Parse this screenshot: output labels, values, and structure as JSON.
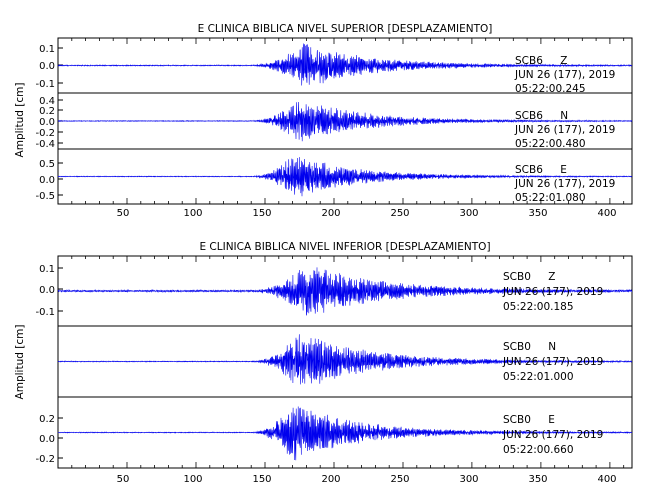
{
  "chart_data": [
    {
      "type": "line",
      "title": "E CLINICA BIBLICA NIVEL SUPERIOR [DESPLAZAMIENTO]",
      "ylabel": "Amplitud [cm]",
      "xlabel": "",
      "xlim": [
        0,
        416
      ],
      "x_ticks": [
        50,
        100,
        150,
        200,
        250,
        300,
        350,
        400
      ],
      "series_color": "#0000ee",
      "traces": [
        {
          "station": "SCB6",
          "component": "Z",
          "date": "JUN 26 (177), 2019",
          "time": "05:22:00.245",
          "ylim": [
            -0.15,
            0.15
          ],
          "y_ticks": [
            "0.1",
            "0.0",
            "-0.1"
          ],
          "y_tick_values": [
            0.1,
            0.0,
            -0.1
          ],
          "peak_amplitude": 0.13,
          "onset": 140,
          "peak_time": 178,
          "decay_end": 330,
          "noise_level": 0.003
        },
        {
          "station": "SCB6",
          "component": "N",
          "date": "JUN 26 (177), 2019",
          "time": "05:22:00.480",
          "ylim": [
            -0.5,
            0.5
          ],
          "y_ticks": [
            "0.4",
            "0.2",
            "0.0",
            "-0.2",
            "-0.4"
          ],
          "y_tick_values": [
            0.4,
            0.2,
            0.0,
            -0.2,
            -0.4
          ],
          "peak_amplitude": 0.42,
          "onset": 140,
          "peak_time": 175,
          "decay_end": 320,
          "noise_level": 0.008
        },
        {
          "station": "SCB6",
          "component": "E",
          "date": "JUN 26 (177), 2019",
          "time": "05:22:01.080",
          "ylim": [
            -0.65,
            0.65
          ],
          "y_ticks": [
            "0.5",
            "0.0",
            "-0.5"
          ],
          "y_tick_values": [
            0.5,
            0.0,
            -0.5
          ],
          "peak_amplitude": 0.55,
          "onset": 140,
          "peak_time": 171,
          "decay_end": 310,
          "noise_level": 0.01
        }
      ]
    },
    {
      "type": "line",
      "title": "E CLINICA BIBLICA NIVEL INFERIOR [DESPLAZAMIENTO]",
      "ylabel": "Amplitud [cm]",
      "xlabel": "",
      "xlim": [
        0,
        416
      ],
      "x_ticks": [
        50,
        100,
        150,
        200,
        250,
        300,
        350,
        400
      ],
      "series_color": "#0000ee",
      "traces": [
        {
          "station": "SCB0",
          "component": "Z",
          "date": "JUN 26 (177), 2019",
          "time": "05:22:00.185",
          "ylim": [
            -0.15,
            0.15
          ],
          "y_ticks": [
            "0.1",
            "0.0",
            "-0.1"
          ],
          "y_tick_values": [
            0.1,
            0.0,
            -0.1
          ],
          "peak_amplitude": 0.12,
          "onset": 140,
          "peak_time": 180,
          "decay_end": 350,
          "noise_level": 0.004
        },
        {
          "station": "SCB0",
          "component": "N",
          "date": "JUN 26 (177), 2019",
          "time": "05:22:01.000",
          "ylim": [
            -0.3,
            0.3
          ],
          "y_ticks": [],
          "y_tick_values": [],
          "peak_amplitude": 0.25,
          "onset": 140,
          "peak_time": 175,
          "decay_end": 340,
          "noise_level": 0.004
        },
        {
          "station": "SCB0",
          "component": "E",
          "date": "JUN 26 (177), 2019",
          "time": "05:22:00.660",
          "ylim": [
            -0.3,
            0.3
          ],
          "y_ticks": [
            "0.2",
            "0.0",
            "-0.2"
          ],
          "y_tick_values": [
            0.2,
            0.0,
            -0.2
          ],
          "peak_amplitude": 0.26,
          "onset": 140,
          "peak_time": 170,
          "decay_end": 320,
          "noise_level": 0.004
        }
      ]
    }
  ]
}
